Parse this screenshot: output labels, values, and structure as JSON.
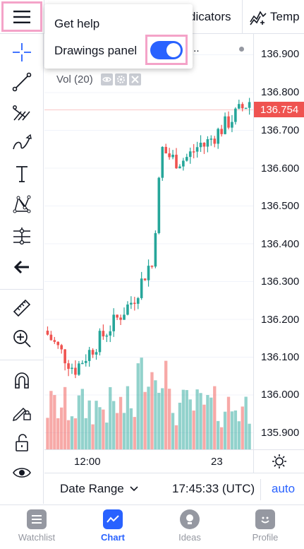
{
  "header": {
    "indicators_label": "dicators",
    "templates_label": "Temp"
  },
  "menu": {
    "get_help": "Get help",
    "drawings_panel": "Drawings panel",
    "drawings_panel_on": true
  },
  "chart": {
    "more_label": "...",
    "volume_legend": "Vol (20)",
    "price_ticks": [
      "136.900",
      "136.800",
      "136.700",
      "136.600",
      "136.500",
      "136.400",
      "136.300",
      "136.200",
      "136.100",
      "136.000",
      "135.900"
    ],
    "current_price": "136.754",
    "time_ticks": [
      "12:00",
      "23"
    ],
    "colors": {
      "up": "#26a69a",
      "down": "#ef5350",
      "badge": "#ef5350"
    }
  },
  "bottom": {
    "date_range": "Date Range",
    "clock": "17:45:33 (UTC)",
    "auto": "auto"
  },
  "nav": {
    "items": [
      {
        "label": "Watchlist"
      },
      {
        "label": "Chart"
      },
      {
        "label": "Ideas"
      },
      {
        "label": "Profile"
      }
    ]
  }
}
